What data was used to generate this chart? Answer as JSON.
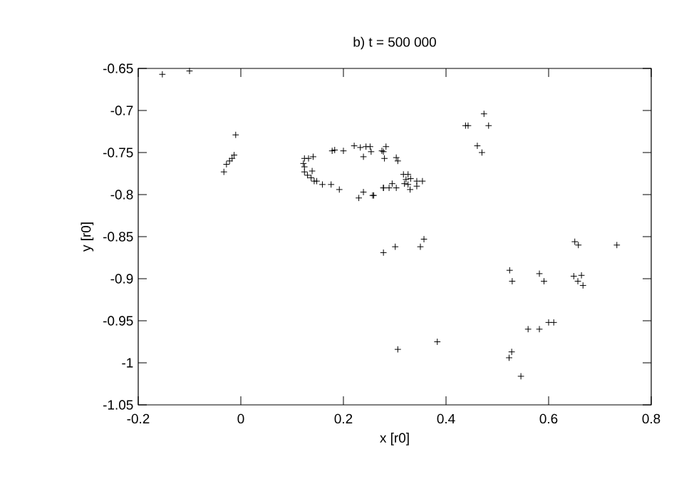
{
  "chart_data": {
    "type": "scatter",
    "title": "b) t = 500 000",
    "xlabel": "x [r0]",
    "ylabel": "y [r0]",
    "xlim": [
      -0.2,
      0.8
    ],
    "ylim": [
      -1.05,
      -0.65
    ],
    "xticks": [
      -0.2,
      0,
      0.2,
      0.4,
      0.6,
      0.8
    ],
    "yticks": [
      -1.05,
      -1,
      -0.95,
      -0.9,
      -0.85,
      -0.8,
      -0.75,
      -0.7,
      -0.65
    ],
    "grid": false,
    "marker": "cross",
    "series": [
      {
        "color": "#000000",
        "x": [
          -0.153,
          -0.1,
          -0.01,
          -0.013,
          -0.017,
          -0.022,
          -0.028,
          -0.033,
          0.124,
          0.132,
          0.141,
          0.122,
          0.124,
          0.124,
          0.13,
          0.139,
          0.137,
          0.143,
          0.148,
          0.159,
          0.176,
          0.192,
          0.178,
          0.183,
          0.2,
          0.221,
          0.233,
          0.244,
          0.252,
          0.239,
          0.254,
          0.23,
          0.239,
          0.257,
          0.278,
          0.278,
          0.275,
          0.278,
          0.283,
          0.28,
          0.303,
          0.306,
          0.317,
          0.326,
          0.322,
          0.331,
          0.319,
          0.326,
          0.33,
          0.343,
          0.354,
          0.343,
          0.278,
          0.289,
          0.295,
          0.303,
          0.259,
          0.438,
          0.443,
          0.474,
          0.483,
          0.461,
          0.47,
          0.301,
          0.35,
          0.357,
          0.651,
          0.658,
          0.733,
          0.524,
          0.529,
          0.582,
          0.591,
          0.649,
          0.664,
          0.657,
          0.667,
          0.6,
          0.61,
          0.56,
          0.582,
          0.306,
          0.383,
          0.528,
          0.523,
          0.546
        ],
        "values": [
          -0.657,
          -0.653,
          -0.729,
          -0.753,
          -0.757,
          -0.76,
          -0.764,
          -0.773,
          -0.757,
          -0.757,
          -0.755,
          -0.763,
          -0.767,
          -0.773,
          -0.777,
          -0.772,
          -0.78,
          -0.784,
          -0.784,
          -0.788,
          -0.788,
          -0.794,
          -0.748,
          -0.747,
          -0.748,
          -0.742,
          -0.744,
          -0.743,
          -0.743,
          -0.755,
          -0.749,
          -0.804,
          -0.797,
          -0.801,
          -0.792,
          -0.869,
          -0.748,
          -0.749,
          -0.743,
          -0.757,
          -0.756,
          -0.76,
          -0.776,
          -0.776,
          -0.782,
          -0.781,
          -0.787,
          -0.788,
          -0.794,
          -0.784,
          -0.784,
          -0.79,
          -0.792,
          -0.792,
          -0.787,
          -0.792,
          -0.801,
          -0.718,
          -0.718,
          -0.704,
          -0.718,
          -0.742,
          -0.75,
          -0.862,
          -0.862,
          -0.853,
          -0.856,
          -0.86,
          -0.86,
          -0.89,
          -0.903,
          -0.894,
          -0.903,
          -0.897,
          -0.896,
          -0.903,
          -0.908,
          -0.952,
          -0.952,
          -0.96,
          -0.96,
          -0.984,
          -0.975,
          -0.987,
          -0.994,
          -1.016
        ]
      }
    ]
  }
}
